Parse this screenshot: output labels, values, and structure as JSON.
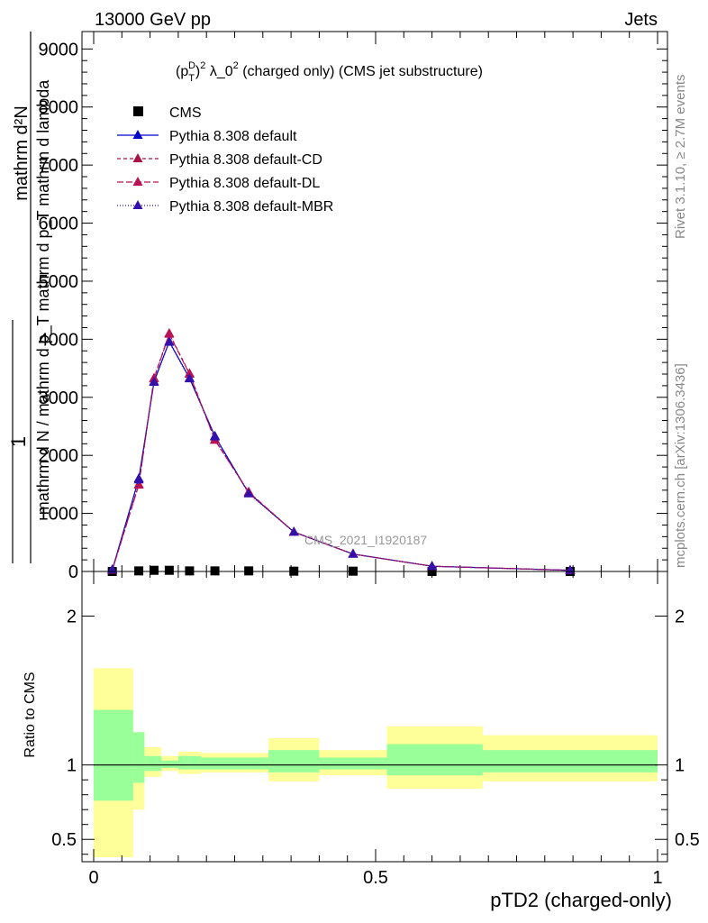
{
  "header": {
    "left": "13000 GeV pp",
    "right": "Jets"
  },
  "side_labels": {
    "rivet": "Rivet 3.1.10, ≥ 2.7M events",
    "mcplots": "mcplots.cern.ch [arXiv:1306.3436]"
  },
  "watermark": "CMS_2021_I1920187",
  "chart_data": [
    {
      "type": "line",
      "title": "(p_T^D)^2 λ_0^2 (charged only) (CMS jet substructure)",
      "title_parts": {
        "p": "(p",
        "sup1": "D",
        "sub1": "T",
        "close": ")",
        "sup2": "2",
        "lambda": " λ_0",
        "sup3": "2",
        "rest": " (charged only) (CMS jet substructure)"
      },
      "ylabel": {
        "one": "1",
        "num_top": "mathrm d²N",
        "num_bottom": "mathrm d N / mathrm d p_T mathrm d p_T mathrm d lambda"
      },
      "xlim": [
        0,
        1
      ],
      "ylim": [
        0,
        9300
      ],
      "y_ticks": [
        0,
        1000,
        2000,
        3000,
        4000,
        5000,
        6000,
        7000,
        8000,
        9000
      ],
      "y_tick_labels": [
        "0",
        "1000",
        "2000",
        "3000",
        "4000",
        "5000",
        "6000",
        "7000",
        "8000",
        "9000"
      ],
      "legend_position": "top-left",
      "x": [
        0.033,
        0.08,
        0.107,
        0.134,
        0.17,
        0.215,
        0.275,
        0.355,
        0.46,
        0.6,
        0.845
      ],
      "series": [
        {
          "name": "CMS",
          "color": "#000000",
          "marker": "square",
          "values": [
            0,
            10,
            20,
            20,
            10,
            10,
            10,
            5,
            5,
            0,
            0
          ]
        },
        {
          "name": "Pythia 8.308 default",
          "color": "#0000cc",
          "dash": "",
          "marker": "triangle",
          "values": [
            30,
            1600,
            3270,
            3960,
            3330,
            2330,
            1350,
            680,
            300,
            90,
            20
          ]
        },
        {
          "name": "Pythia 8.308 default-CD",
          "color": "#aa1144",
          "dash": "4,3",
          "marker": "triangle",
          "values": [
            25,
            1500,
            3330,
            4100,
            3410,
            2270,
            1360,
            680,
            300,
            90,
            20
          ]
        },
        {
          "name": "Pythia 8.308 default-DL",
          "color": "#bb1155",
          "dash": "7,3",
          "marker": "triangle",
          "values": [
            25,
            1490,
            3320,
            4090,
            3400,
            2260,
            1370,
            680,
            300,
            90,
            20
          ]
        },
        {
          "name": "Pythia 8.308 default-MBR",
          "color": "#3311aa",
          "dash": "1,2",
          "marker": "triangle",
          "values": [
            30,
            1580,
            3260,
            3950,
            3320,
            2320,
            1340,
            680,
            300,
            90,
            20
          ]
        }
      ]
    },
    {
      "type": "area",
      "ylabel": "Ratio to CMS",
      "xlabel": "pTD2 (charged-only)",
      "xlim": [
        0,
        1
      ],
      "ylim": [
        0.35,
        2.3
      ],
      "x_ticks": [
        0,
        0.5,
        1
      ],
      "x_tick_labels": [
        "0",
        "0.5",
        "1"
      ],
      "y_ticks": [
        0.5,
        1,
        2
      ],
      "y_tick_labels": [
        "0.5",
        "1",
        "2"
      ],
      "bands": [
        {
          "name": "outer",
          "color": "#ffff99",
          "bins": [
            [
              0,
              0.07,
              0.38,
              1.65
            ],
            [
              0.07,
              0.09,
              0.7,
              1.22
            ],
            [
              0.09,
              0.12,
              0.92,
              1.12
            ],
            [
              0.12,
              0.15,
              0.96,
              1.06
            ],
            [
              0.15,
              0.19,
              0.94,
              1.09
            ],
            [
              0.19,
              0.31,
              0.95,
              1.08
            ],
            [
              0.31,
              0.4,
              0.89,
              1.18
            ],
            [
              0.4,
              0.52,
              0.93,
              1.1
            ],
            [
              0.52,
              0.69,
              0.84,
              1.26
            ],
            [
              0.69,
              1.0,
              0.89,
              1.2
            ]
          ]
        },
        {
          "name": "inner",
          "color": "#99ff99",
          "bins": [
            [
              0,
              0.07,
              0.76,
              1.37
            ],
            [
              0.07,
              0.09,
              0.88,
              1.22
            ],
            [
              0.09,
              0.12,
              0.96,
              1.06
            ],
            [
              0.12,
              0.15,
              0.98,
              1.03
            ],
            [
              0.15,
              0.19,
              0.97,
              1.06
            ],
            [
              0.19,
              0.31,
              0.97,
              1.05
            ],
            [
              0.31,
              0.4,
              0.95,
              1.1
            ],
            [
              0.4,
              0.52,
              0.97,
              1.05
            ],
            [
              0.52,
              0.69,
              0.93,
              1.14
            ],
            [
              0.69,
              1.0,
              0.95,
              1.1
            ]
          ]
        }
      ],
      "reference_line": 1
    }
  ]
}
